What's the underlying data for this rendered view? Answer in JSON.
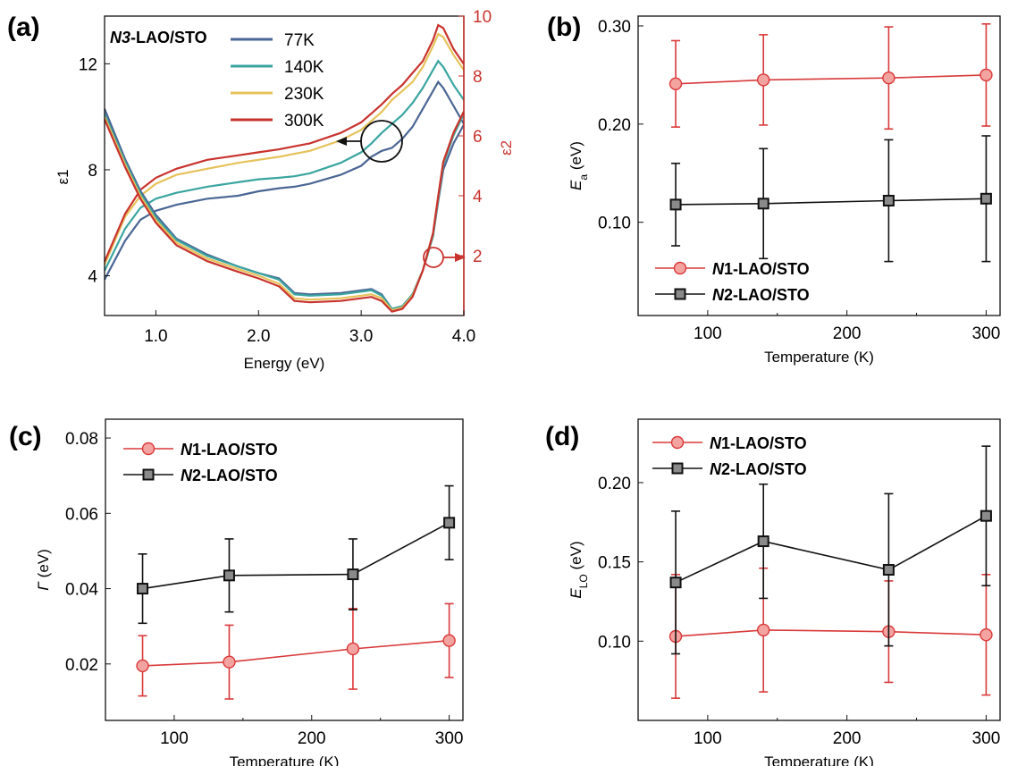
{
  "figure": {
    "panels": [
      {
        "label": "(a)"
      },
      {
        "label": "(b)"
      },
      {
        "label": "(c)"
      },
      {
        "label": "(d)"
      }
    ]
  },
  "chart_data": [
    {
      "panel": "(a)",
      "type": "line",
      "title": "N3-LAO/STO",
      "xlabel": "Energy (eV)",
      "ylabel": "ε1",
      "y2label": "ε2",
      "xlim": [
        0.5,
        4.0
      ],
      "ylim": [
        2.5,
        13.8
      ],
      "y2lim": [
        0,
        10
      ],
      "xticks": [
        "1.0",
        "2.0",
        "3.0",
        "4.0"
      ],
      "yticks": [
        "4",
        "8",
        "12"
      ],
      "y2ticks": [
        "2",
        "4",
        "6",
        "8",
        "10"
      ],
      "legend_position": "top-center",
      "colors": {
        "77K": "#4a6694",
        "140K": "#3aa5a0",
        "230K": "#e6c25a",
        "300K": "#c8332e",
        "axis2": "#c8332e"
      },
      "x": [
        0.5,
        0.7,
        0.85,
        1.0,
        1.2,
        1.5,
        1.8,
        2.0,
        2.2,
        2.35,
        2.5,
        2.8,
        3.0,
        3.1,
        3.2,
        3.3,
        3.4,
        3.5,
        3.6,
        3.7,
        3.75,
        3.8,
        3.9,
        4.0
      ],
      "series_eps1": [
        {
          "name": "77K",
          "values": [
            10.3,
            8.4,
            7.2,
            6.3,
            5.4,
            4.8,
            4.35,
            4.1,
            3.9,
            3.35,
            3.3,
            3.35,
            3.45,
            3.5,
            3.3,
            2.75,
            2.85,
            3.3,
            4.2,
            5.5,
            6.8,
            8.0,
            9.0,
            9.7
          ]
        },
        {
          "name": "140K",
          "values": [
            10.1,
            8.3,
            7.1,
            6.2,
            5.35,
            4.75,
            4.35,
            4.1,
            3.85,
            3.3,
            3.25,
            3.3,
            3.4,
            3.45,
            3.25,
            2.75,
            2.85,
            3.3,
            4.2,
            5.5,
            6.9,
            8.2,
            9.3,
            10.1
          ]
        },
        {
          "name": "230K",
          "values": [
            10.0,
            8.2,
            7.0,
            6.1,
            5.25,
            4.65,
            4.25,
            4.0,
            3.7,
            3.15,
            3.1,
            3.15,
            3.25,
            3.3,
            3.15,
            2.7,
            2.8,
            3.25,
            4.2,
            5.6,
            7.0,
            8.3,
            9.4,
            10.2
          ]
        },
        {
          "name": "300K",
          "values": [
            9.9,
            8.1,
            6.9,
            6.0,
            5.15,
            4.55,
            4.15,
            3.9,
            3.6,
            3.05,
            3.0,
            3.05,
            3.15,
            3.2,
            3.05,
            2.65,
            2.75,
            3.2,
            4.2,
            5.6,
            7.0,
            8.3,
            9.4,
            10.2
          ]
        }
      ],
      "series_eps2": [
        {
          "name": "77K",
          "values": [
            1.2,
            2.5,
            3.2,
            3.5,
            3.7,
            3.9,
            4.0,
            4.15,
            4.25,
            4.3,
            4.4,
            4.7,
            5.0,
            5.3,
            5.5,
            5.6,
            5.9,
            6.3,
            6.9,
            7.5,
            7.8,
            7.6,
            7.0,
            6.4
          ]
        },
        {
          "name": "140K",
          "values": [
            1.5,
            2.9,
            3.6,
            3.9,
            4.1,
            4.3,
            4.45,
            4.55,
            4.6,
            4.65,
            4.75,
            5.1,
            5.45,
            5.75,
            6.1,
            6.4,
            6.7,
            7.1,
            7.6,
            8.2,
            8.5,
            8.3,
            7.7,
            7.2
          ]
        },
        {
          "name": "230K",
          "values": [
            1.7,
            3.3,
            4.0,
            4.4,
            4.7,
            4.9,
            5.1,
            5.2,
            5.3,
            5.4,
            5.5,
            5.85,
            6.2,
            6.5,
            6.8,
            7.2,
            7.5,
            7.8,
            8.3,
            9.0,
            9.4,
            9.3,
            8.7,
            8.2
          ]
        },
        {
          "name": "300K",
          "values": [
            1.8,
            3.4,
            4.2,
            4.6,
            4.9,
            5.2,
            5.35,
            5.45,
            5.55,
            5.65,
            5.75,
            6.1,
            6.45,
            6.75,
            7.05,
            7.4,
            7.7,
            8.1,
            8.5,
            9.2,
            9.7,
            9.6,
            8.9,
            8.4
          ]
        }
      ]
    },
    {
      "panel": "(b)",
      "type": "line",
      "xlabel": "Temperature (K)",
      "ylabel_main": "E",
      "ylabel_sub": "a",
      "ylabel_unit": " (eV)",
      "xlim": [
        50,
        310
      ],
      "ylim": [
        0.005,
        0.31
      ],
      "xticks": [
        "100",
        "200",
        "300"
      ],
      "yticks": [
        "0.10",
        "0.20",
        "0.30"
      ],
      "legend_position": "bottom-left",
      "x": [
        77,
        140,
        230,
        300
      ],
      "series": [
        {
          "name_italic": "N",
          "name_rest": "1-LAO/STO",
          "color": "#d9393a",
          "marker": "circle",
          "values": [
            0.241,
            0.245,
            0.247,
            0.25
          ],
          "err": [
            0.044,
            0.046,
            0.052,
            0.052
          ]
        },
        {
          "name_italic": "N",
          "name_rest": "2-LAO/STO",
          "color": "#111111",
          "marker": "square",
          "values": [
            0.118,
            0.119,
            0.122,
            0.124
          ],
          "err": [
            0.042,
            0.056,
            0.062,
            0.064
          ]
        }
      ]
    },
    {
      "panel": "(c)",
      "type": "line",
      "xlabel": "Temperature (K)",
      "ylabel_main": "Γ",
      "ylabel_sub": "",
      "ylabel_unit": " (eV)",
      "xlim": [
        50,
        310
      ],
      "ylim": [
        0.005,
        0.085
      ],
      "xticks": [
        "100",
        "200",
        "300"
      ],
      "yticks": [
        "0.02",
        "0.04",
        "0.06",
        "0.08"
      ],
      "legend_position": "top-left",
      "x": [
        77,
        140,
        230,
        300
      ],
      "series": [
        {
          "name_italic": "N",
          "name_rest": "1-LAO/STO",
          "color": "#d9393a",
          "marker": "circle",
          "values": [
            0.0195,
            0.0205,
            0.024,
            0.0262
          ],
          "err": [
            0.008,
            0.0098,
            0.0107,
            0.0098
          ]
        },
        {
          "name_italic": "N",
          "name_rest": "2-LAO/STO",
          "color": "#111111",
          "marker": "square",
          "values": [
            0.04,
            0.0435,
            0.0438,
            0.0575
          ],
          "err": [
            0.0092,
            0.0097,
            0.0094,
            0.0098
          ]
        }
      ]
    },
    {
      "panel": "(d)",
      "type": "line",
      "xlabel": "Temperature (K)",
      "ylabel_main": "E",
      "ylabel_sub": "LO",
      "ylabel_unit": " (eV)",
      "xlim": [
        50,
        310
      ],
      "ylim": [
        0.05,
        0.24
      ],
      "xticks": [
        "100",
        "200",
        "300"
      ],
      "yticks": [
        "0.10",
        "0.15",
        "0.20"
      ],
      "legend_position": "top-left",
      "x": [
        77,
        140,
        230,
        300
      ],
      "series": [
        {
          "name_italic": "N",
          "name_rest": "1-LAO/STO",
          "color": "#d9393a",
          "marker": "circle",
          "values": [
            0.103,
            0.107,
            0.106,
            0.104
          ],
          "err": [
            0.039,
            0.039,
            0.032,
            0.038
          ]
        },
        {
          "name_italic": "N",
          "name_rest": "2-LAO/STO",
          "color": "#111111",
          "marker": "square",
          "values": [
            0.137,
            0.163,
            0.145,
            0.179
          ],
          "err": [
            0.045,
            0.036,
            0.048,
            0.044
          ]
        }
      ]
    }
  ]
}
